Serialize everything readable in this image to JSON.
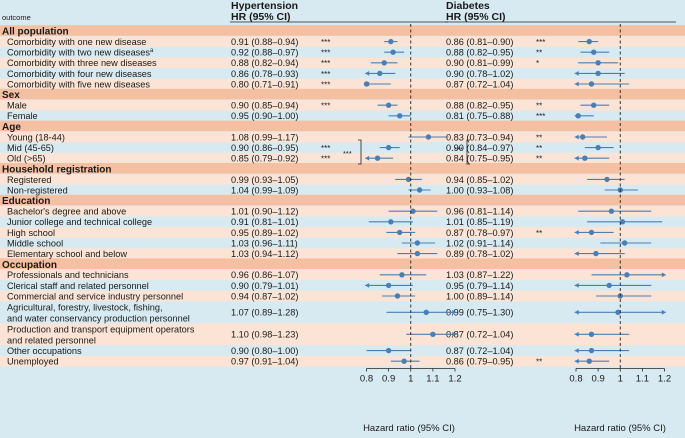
{
  "headers": {
    "outcome": "outcome",
    "panels": [
      {
        "title": "Hypertension",
        "sub": "HR (95% CI)"
      },
      {
        "title": "Diabetes",
        "sub": "HR (95% CI)"
      }
    ]
  },
  "axis": {
    "label": "Hazard ratio (95% CI)",
    "ticks": [
      "0.8",
      "0.9",
      "1",
      "1.1",
      "1.2"
    ],
    "tick_values": [
      0.8,
      0.9,
      1.0,
      1.1,
      1.2
    ]
  },
  "colors": {
    "point": "#4a7fb5",
    "section": "#f5bfa2",
    "band": "#fbe4d5",
    "background": "#d7eaf1"
  },
  "chart_data": {
    "type": "forest",
    "xlim": [
      0.8,
      1.2
    ],
    "reference_line": 1.0,
    "sections": [
      {
        "title": "All population",
        "rows": [
          {
            "label": "Comorbidity with one new disease",
            "sup": "",
            "hyp": {
              "hr": 0.91,
              "lo": 0.88,
              "hi": 0.94,
              "text": "0.91 (0.88–0.94)",
              "sig": "***"
            },
            "dia": {
              "hr": 0.86,
              "lo": 0.81,
              "hi": 0.9,
              "text": "0.86 (0.81–0.90)",
              "sig": "***"
            }
          },
          {
            "label": "Comorbidity with two new diseases",
            "sup": "a",
            "hyp": {
              "hr": 0.92,
              "lo": 0.88,
              "hi": 0.97,
              "text": "0.92 (0.88–0.97)",
              "sig": "***"
            },
            "dia": {
              "hr": 0.88,
              "lo": 0.82,
              "hi": 0.95,
              "text": "0.88 (0.82–0.95)",
              "sig": "**"
            }
          },
          {
            "label": "Comorbidity with three new diseases",
            "sup": "",
            "hyp": {
              "hr": 0.88,
              "lo": 0.82,
              "hi": 0.94,
              "text": "0.88 (0.82–0.94)",
              "sig": "***"
            },
            "dia": {
              "hr": 0.9,
              "lo": 0.81,
              "hi": 0.99,
              "text": "0.90 (0.81–0.99)",
              "sig": "*"
            }
          },
          {
            "label": "Comorbidity with four new diseases",
            "sup": "",
            "hyp": {
              "hr": 0.86,
              "lo": 0.78,
              "hi": 0.93,
              "text": "0.86 (0.78–0.93)",
              "sig": "***"
            },
            "dia": {
              "hr": 0.9,
              "lo": 0.78,
              "hi": 1.02,
              "text": "0.90 (0.78–1.02)",
              "sig": ""
            }
          },
          {
            "label": "Comorbidity with five new diseases",
            "sup": "",
            "hyp": {
              "hr": 0.8,
              "lo": 0.71,
              "hi": 0.91,
              "text": "0.80 (0.71–0.91)",
              "sig": "***"
            },
            "dia": {
              "hr": 0.87,
              "lo": 0.72,
              "hi": 1.04,
              "text": "0.87 (0.72–1.04)",
              "sig": ""
            }
          }
        ]
      },
      {
        "title": "Sex",
        "rows": [
          {
            "label": "Male",
            "sup": "",
            "hyp": {
              "hr": 0.9,
              "lo": 0.85,
              "hi": 0.94,
              "text": "0.90 (0.85–0.94)",
              "sig": "***"
            },
            "dia": {
              "hr": 0.88,
              "lo": 0.82,
              "hi": 0.95,
              "text": "0.88 (0.82–0.95)",
              "sig": "**"
            }
          },
          {
            "label": "Female",
            "sup": "",
            "hyp": {
              "hr": 0.95,
              "lo": 0.9,
              "hi": 1.0,
              "text": "0.95 (0.90–1.00)",
              "sig": ""
            },
            "dia": {
              "hr": 0.81,
              "lo": 0.75,
              "hi": 0.88,
              "text": "0.81 (0.75–0.88)",
              "sig": "***"
            }
          }
        ]
      },
      {
        "title": "Age",
        "rows": [
          {
            "label": "Young (18-44)",
            "sup": "",
            "hyp": {
              "hr": 1.08,
              "lo": 0.99,
              "hi": 1.17,
              "text": "1.08 (0.99–1.17)",
              "sig": ""
            },
            "dia": {
              "hr": 0.83,
              "lo": 0.73,
              "hi": 0.94,
              "text": "0.83 (0.73–0.94)",
              "sig": "**"
            }
          },
          {
            "label": "Mid   (45-65)",
            "sup": "",
            "hyp": {
              "hr": 0.9,
              "lo": 0.86,
              "hi": 0.95,
              "text": "0.90 (0.86–0.95)",
              "sig": "***"
            },
            "dia": {
              "hr": 0.9,
              "lo": 0.84,
              "hi": 0.97,
              "text": "0.90 (0.84–0.97)",
              "sig": "**"
            }
          },
          {
            "label": "Old    (>65)",
            "sup": "",
            "hyp": {
              "hr": 0.85,
              "lo": 0.79,
              "hi": 0.92,
              "text": "0.85 (0.79–0.92)",
              "sig": "***"
            },
            "dia": {
              "hr": 0.84,
              "lo": 0.75,
              "hi": 0.95,
              "text": "0.84 (0.75–0.95)",
              "sig": "**"
            }
          }
        ]
      },
      {
        "title": "Household registration",
        "rows": [
          {
            "label": "Registered",
            "sup": "",
            "hyp": {
              "hr": 0.99,
              "lo": 0.93,
              "hi": 1.05,
              "text": "0.99 (0.93–1.05)",
              "sig": ""
            },
            "dia": {
              "hr": 0.94,
              "lo": 0.85,
              "hi": 1.02,
              "text": "0.94 (0.85–1.02)",
              "sig": ""
            }
          },
          {
            "label": "Non-registered",
            "sup": "",
            "hyp": {
              "hr": 1.04,
              "lo": 0.99,
              "hi": 1.09,
              "text": "1.04 (0.99–1.09)",
              "sig": ""
            },
            "dia": {
              "hr": 1.0,
              "lo": 0.93,
              "hi": 1.08,
              "text": "1.00 (0.93–1.08)",
              "sig": ""
            }
          }
        ]
      },
      {
        "title": "Education",
        "rows": [
          {
            "label": "Bachelor's degree and above",
            "sup": "",
            "hyp": {
              "hr": 1.01,
              "lo": 0.9,
              "hi": 1.12,
              "text": "1.01 (0.90–1.12)",
              "sig": ""
            },
            "dia": {
              "hr": 0.96,
              "lo": 0.81,
              "hi": 1.14,
              "text": "0.96 (0.81–1.14)",
              "sig": ""
            }
          },
          {
            "label": "Junior college and technical college",
            "sup": "",
            "hyp": {
              "hr": 0.91,
              "lo": 0.81,
              "hi": 1.01,
              "text": "0.91 (0.81–1.01)",
              "sig": ""
            },
            "dia": {
              "hr": 1.01,
              "lo": 0.85,
              "hi": 1.19,
              "text": "1.01 (0.85–1.19)",
              "sig": ""
            }
          },
          {
            "label": "High school",
            "sup": "",
            "hyp": {
              "hr": 0.95,
              "lo": 0.89,
              "hi": 1.02,
              "text": "0.95 (0.89–1.02)",
              "sig": ""
            },
            "dia": {
              "hr": 0.87,
              "lo": 0.78,
              "hi": 0.97,
              "text": "0.87 (0.78–0.97)",
              "sig": "**"
            }
          },
          {
            "label": "Middle school",
            "sup": "",
            "hyp": {
              "hr": 1.03,
              "lo": 0.96,
              "hi": 1.11,
              "text": "1.03 (0.96–1.11)",
              "sig": ""
            },
            "dia": {
              "hr": 1.02,
              "lo": 0.91,
              "hi": 1.14,
              "text": "1.02 (0.91–1.14)",
              "sig": ""
            }
          },
          {
            "label": "Elementary school and below",
            "sup": "",
            "hyp": {
              "hr": 1.03,
              "lo": 0.94,
              "hi": 1.12,
              "text": "1.03 (0.94–1.12)",
              "sig": ""
            },
            "dia": {
              "hr": 0.89,
              "lo": 0.78,
              "hi": 1.02,
              "text": "0.89 (0.78–1.02)",
              "sig": ""
            }
          }
        ]
      },
      {
        "title": "Occupation",
        "rows": [
          {
            "label": "Professionals and technicians",
            "sup": "",
            "hyp": {
              "hr": 0.96,
              "lo": 0.86,
              "hi": 1.07,
              "text": "0.96 (0.86–1.07)",
              "sig": ""
            },
            "dia": {
              "hr": 1.03,
              "lo": 0.87,
              "hi": 1.22,
              "text": "1.03 (0.87–1.22)",
              "sig": ""
            }
          },
          {
            "label": "Clerical staff and related personnel",
            "sup": "",
            "hyp": {
              "hr": 0.9,
              "lo": 0.79,
              "hi": 1.01,
              "text": "0.90 (0.79–1.01)",
              "sig": ""
            },
            "dia": {
              "hr": 0.95,
              "lo": 0.79,
              "hi": 1.14,
              "text": "0.95 (0.79–1.14)",
              "sig": ""
            }
          },
          {
            "label": "Commercial and service industry personnel",
            "sup": "",
            "hyp": {
              "hr": 0.94,
              "lo": 0.87,
              "hi": 1.02,
              "text": "0.94 (0.87–1.02)",
              "sig": ""
            },
            "dia": {
              "hr": 1.0,
              "lo": 0.89,
              "hi": 1.14,
              "text": "1.00 (0.89–1.14)",
              "sig": ""
            }
          },
          {
            "label": "Agricultural, forestry, livestock, fishing,",
            "label2": "and water conservancy production personnel",
            "sup": "",
            "hyp": {
              "hr": 1.07,
              "lo": 0.89,
              "hi": 1.28,
              "text": "1.07 (0.89–1.28)",
              "sig": ""
            },
            "dia": {
              "hr": 0.99,
              "lo": 0.75,
              "hi": 1.3,
              "text": "0.99 (0.75–1.30)",
              "sig": ""
            }
          },
          {
            "label": "Production and transport equipment operators",
            "label2": "and related personnel",
            "sup": "",
            "hyp": {
              "hr": 1.1,
              "lo": 0.98,
              "hi": 1.23,
              "text": "1.10 (0.98–1.23)",
              "sig": ""
            },
            "dia": {
              "hr": 0.87,
              "lo": 0.72,
              "hi": 1.04,
              "text": "0.87 (0.72–1.04)",
              "sig": ""
            }
          },
          {
            "label": "Other occupations",
            "sup": "",
            "hyp": {
              "hr": 0.9,
              "lo": 0.8,
              "hi": 1.0,
              "text": "0.90 (0.80–1.00)",
              "sig": ""
            },
            "dia": {
              "hr": 0.87,
              "lo": 0.72,
              "hi": 1.04,
              "text": "0.87 (0.72–1.04)",
              "sig": ""
            }
          },
          {
            "label": "Unemployed",
            "sup": "",
            "hyp": {
              "hr": 0.97,
              "lo": 0.91,
              "hi": 1.04,
              "text": "0.97 (0.91–1.04)",
              "sig": ""
            },
            "dia": {
              "hr": 0.86,
              "lo": 0.79,
              "hi": 0.95,
              "text": "0.86 (0.79–0.95)",
              "sig": "**"
            }
          }
        ]
      }
    ],
    "age_comparison": {
      "hypertension": "***",
      "diabetes": "***"
    }
  }
}
